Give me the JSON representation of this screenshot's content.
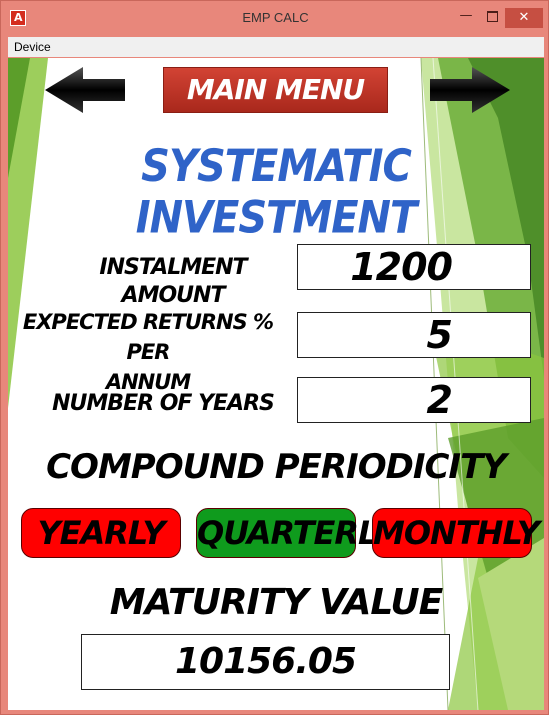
{
  "window": {
    "title": "EMP CALC",
    "app_icon_glyph": "A",
    "minimize_glyph": "—",
    "close_glyph": "✕",
    "frame_color": "#e8877b"
  },
  "menubar": {
    "items": [
      {
        "label": "Device"
      }
    ]
  },
  "nav": {
    "back_icon": "left-arrow-icon",
    "forward_icon": "right-arrow-icon",
    "main_menu_label": "MAIN MENU"
  },
  "page": {
    "title": "SYSTEMATIC INVESTMENT",
    "title_color": "#2f63c8",
    "fields": {
      "instalment_label": "INSTALMENT AMOUNT",
      "instalment_value": "1200",
      "returns_label_line1": "EXPECTED RETURNS % PER",
      "returns_label_line2": "ANNUM",
      "returns_value": "5",
      "years_label": "NUMBER OF YEARS",
      "years_value": "2"
    },
    "compound_heading": "COMPOUND PERIODICITY",
    "periodicity": {
      "yearly": "YEARLY",
      "quarterly": "QUARTERLY",
      "monthly": "MONTHLY",
      "active_color": "#0f9b1d",
      "inactive_color": "#ff0000"
    },
    "maturity_heading": "MATURITY VALUE",
    "maturity_value": "10156.05"
  }
}
